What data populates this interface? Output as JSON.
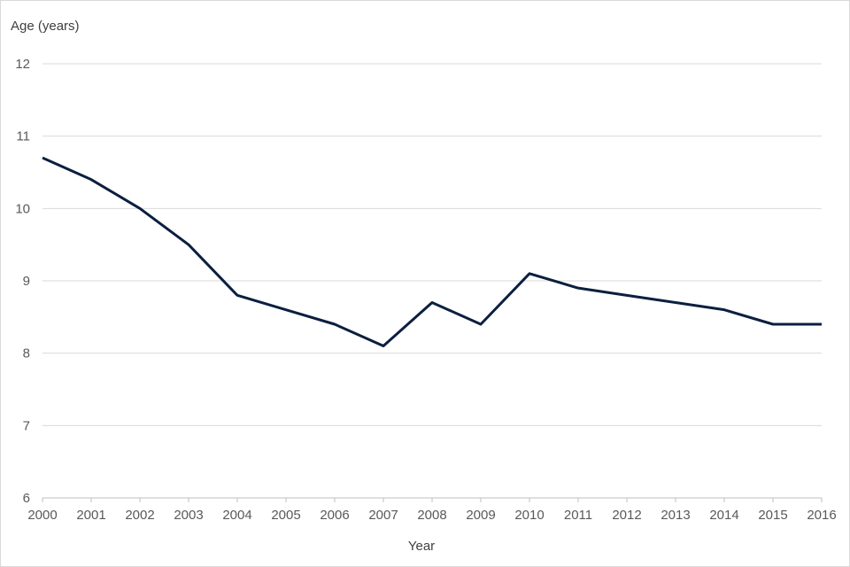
{
  "chart_data": {
    "type": "line",
    "title": "",
    "xlabel": "Year",
    "ylabel": "Age (years)",
    "x": [
      "2000",
      "2001",
      "2002",
      "2003",
      "2004",
      "2005",
      "2006",
      "2007",
      "2008",
      "2009",
      "2010",
      "2011",
      "2012",
      "2013",
      "2014",
      "2015",
      "2016"
    ],
    "y_ticks": [
      "6",
      "7",
      "8",
      "9",
      "10",
      "11",
      "12"
    ],
    "ylim": [
      6,
      12
    ],
    "grid": "horizontal",
    "legend": "none",
    "series": [
      {
        "values": [
          10.7,
          10.4,
          10.0,
          9.5,
          8.8,
          8.6,
          8.4,
          8.1,
          8.7,
          8.4,
          9.1,
          8.9,
          8.8,
          8.7,
          8.6,
          8.4,
          8.4
        ],
        "color": "#0b1f3f"
      }
    ]
  }
}
